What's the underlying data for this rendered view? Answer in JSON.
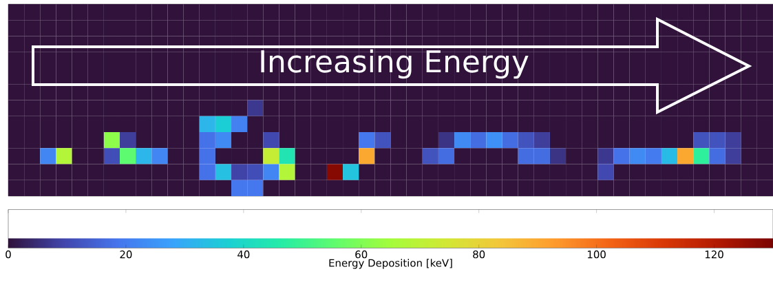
{
  "chart_data": {
    "type": "heatmap",
    "categories": [
      null,
      null,
      null,
      null,
      null,
      null,
      null,
      null,
      null,
      null,
      null,
      null,
      null,
      null,
      null,
      null,
      null,
      null,
      null,
      null,
      null,
      null,
      null,
      null,
      null,
      null,
      null,
      null,
      null,
      null,
      null,
      null,
      null,
      null,
      null,
      null,
      null,
      null,
      null,
      null,
      null,
      null,
      null,
      null,
      null,
      null,
      null,
      null
    ],
    "y_categories": [
      null,
      null,
      null,
      null,
      null,
      null,
      null,
      null,
      null,
      null,
      null,
      null
    ],
    "cells": [
      [
        0,
        0,
        0,
        0,
        0,
        0,
        0,
        0,
        0,
        0,
        0,
        0,
        0,
        0,
        0,
        0,
        0,
        0,
        0,
        0,
        0,
        0,
        0,
        0,
        0,
        0,
        0,
        0,
        0,
        0,
        0,
        0,
        0,
        0,
        0,
        0,
        0,
        0,
        0,
        0,
        0,
        0,
        0,
        0,
        0,
        0,
        0,
        0
      ],
      [
        0,
        0,
        0,
        0,
        0,
        0,
        0,
        0,
        0,
        0,
        0,
        0,
        0,
        0,
        0,
        0,
        0,
        0,
        0,
        0,
        0,
        0,
        0,
        0,
        0,
        0,
        0,
        0,
        0,
        0,
        0,
        0,
        0,
        0,
        0,
        0,
        0,
        0,
        0,
        0,
        0,
        0,
        0,
        0,
        0,
        0,
        0,
        0
      ],
      [
        0,
        0,
        0,
        0,
        0,
        0,
        0,
        0,
        0,
        0,
        0,
        0,
        0,
        0,
        0,
        0,
        0,
        0,
        0,
        0,
        0,
        0,
        0,
        0,
        0,
        0,
        0,
        0,
        0,
        0,
        0,
        0,
        0,
        0,
        0,
        0,
        0,
        0,
        0,
        0,
        0,
        0,
        0,
        0,
        0,
        0,
        0,
        0
      ],
      [
        0,
        0,
        0,
        0,
        0,
        0,
        0,
        0,
        0,
        0,
        0,
        0,
        0,
        0,
        0,
        0,
        0,
        0,
        0,
        0,
        0,
        0,
        0,
        0,
        0,
        0,
        0,
        0,
        0,
        0,
        0,
        0,
        0,
        0,
        0,
        0,
        0,
        0,
        0,
        0,
        0,
        0,
        0,
        0,
        0,
        0,
        0,
        0
      ],
      [
        0,
        0,
        0,
        0,
        0,
        0,
        0,
        0,
        0,
        0,
        0,
        0,
        0,
        0,
        0,
        0,
        0,
        0,
        0,
        0,
        0,
        0,
        0,
        0,
        0,
        0,
        0,
        0,
        0,
        0,
        0,
        0,
        0,
        0,
        0,
        0,
        0,
        0,
        0,
        0,
        0,
        0,
        0,
        0,
        0,
        0,
        0,
        0
      ],
      [
        0,
        0,
        0,
        0,
        0,
        0,
        0,
        0,
        0,
        0,
        0,
        0,
        0,
        0,
        0,
        0,
        0,
        0,
        0,
        0,
        0,
        0,
        0,
        0,
        0,
        0,
        0,
        0,
        0,
        0,
        0,
        0,
        0,
        0,
        0,
        0,
        0,
        0,
        0,
        0,
        0,
        0,
        0,
        0,
        0,
        0,
        0,
        0
      ],
      [
        0,
        0,
        0,
        0,
        0,
        0,
        0,
        0,
        0,
        0,
        0,
        0,
        0,
        0,
        0,
        7,
        0,
        0,
        0,
        0,
        0,
        0,
        0,
        0,
        0,
        0,
        0,
        0,
        0,
        0,
        0,
        0,
        0,
        0,
        0,
        0,
        0,
        0,
        0,
        0,
        0,
        0,
        0,
        0,
        0,
        0,
        0,
        0
      ],
      [
        0,
        0,
        0,
        0,
        0,
        0,
        0,
        0,
        0,
        0,
        0,
        0,
        32,
        37,
        21,
        0,
        0,
        0,
        0,
        0,
        0,
        0,
        0,
        0,
        0,
        0,
        0,
        0,
        0,
        0,
        0,
        0,
        0,
        0,
        0,
        0,
        0,
        0,
        0,
        0,
        0,
        0,
        0,
        0,
        0,
        0,
        0,
        0
      ],
      [
        0,
        0,
        0,
        0,
        0,
        0,
        62,
        8,
        0,
        0,
        0,
        0,
        18,
        23,
        0,
        0,
        10,
        0,
        0,
        0,
        0,
        0,
        19,
        12,
        0,
        0,
        0,
        6,
        23,
        17,
        24,
        17,
        12,
        8,
        0,
        0,
        0,
        0,
        0,
        0,
        0,
        0,
        0,
        12,
        12,
        8,
        0,
        0
      ],
      [
        0,
        0,
        22,
        68,
        0,
        0,
        11,
        55,
        32,
        22,
        0,
        0,
        18,
        0,
        0,
        0,
        72,
        44,
        0,
        0,
        0,
        0,
        90,
        0,
        0,
        0,
        12,
        17,
        0,
        0,
        0,
        0,
        17,
        17,
        6,
        0,
        0,
        7,
        18,
        23,
        20,
        33,
        90,
        48,
        17,
        8,
        0,
        0
      ],
      [
        0,
        0,
        0,
        0,
        0,
        0,
        0,
        0,
        0,
        0,
        0,
        0,
        18,
        34,
        9,
        11,
        22,
        68,
        0,
        0,
        128,
        35,
        0,
        0,
        0,
        0,
        0,
        0,
        0,
        0,
        0,
        0,
        0,
        0,
        0,
        0,
        0,
        10,
        0,
        0,
        0,
        0,
        0,
        0,
        0,
        0,
        0,
        0
      ],
      [
        0,
        0,
        0,
        0,
        0,
        0,
        0,
        0,
        0,
        0,
        0,
        0,
        0,
        0,
        19,
        19,
        0,
        0,
        0,
        0,
        0,
        0,
        0,
        0,
        0,
        0,
        0,
        0,
        0,
        0,
        0,
        0,
        0,
        0,
        0,
        0,
        0,
        0,
        0,
        0,
        0,
        0,
        0,
        0,
        0,
        0,
        0,
        0
      ]
    ],
    "clim": [
      0,
      130
    ],
    "cticks": [
      0,
      20,
      40,
      60,
      80,
      100,
      120
    ],
    "clabel": "Energy Deposition [keV]",
    "annotations": [
      "Increasing Energy"
    ],
    "tick_labels": false
  }
}
